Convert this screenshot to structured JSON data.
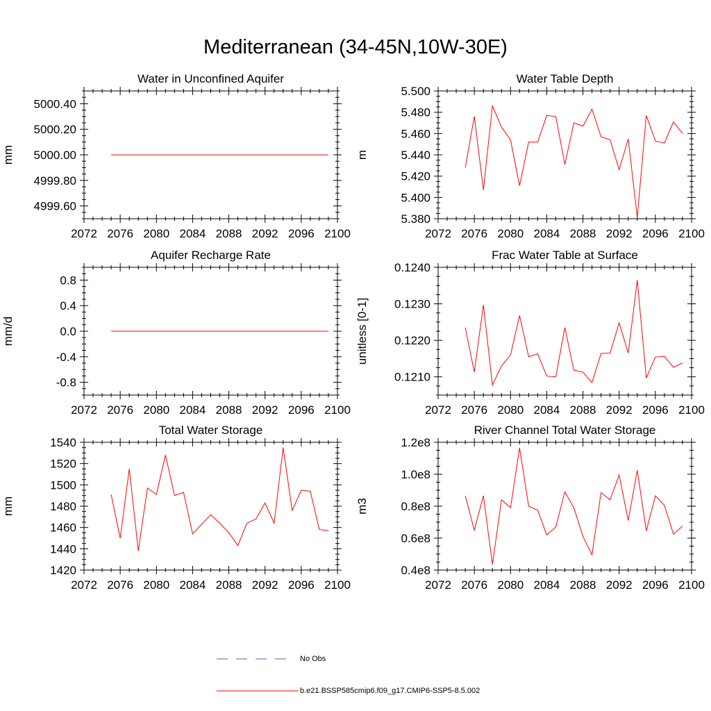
{
  "figure": {
    "title": "Mediterranean (34-45N,10W-30E)"
  },
  "legend": {
    "items": [
      {
        "label": "No Obs",
        "color": "#5a5aa8",
        "style": "dashed"
      },
      {
        "label": "b.e21.BSSP585cmip6.f09_g17.CMIP6-SSP5-8.5.002",
        "color": "#ff0000",
        "style": "solid"
      }
    ]
  },
  "chart_data": [
    {
      "type": "line",
      "title": "Water in Unconfined Aquifer",
      "ylabel": "mm",
      "xlim": [
        2072,
        2100
      ],
      "ylim": [
        4999.5,
        5000.5
      ],
      "xticks": [
        2072,
        2076,
        2080,
        2084,
        2088,
        2092,
        2096,
        2100
      ],
      "yticks": [
        4999.6,
        4999.8,
        5000.0,
        5000.2,
        5000.4
      ],
      "ytick_labels": [
        "4999.60",
        "4999.80",
        "5000.00",
        "5000.20",
        "5000.40"
      ],
      "x": [
        2075,
        2076,
        2077,
        2078,
        2079,
        2080,
        2081,
        2082,
        2083,
        2084,
        2085,
        2086,
        2087,
        2088,
        2089,
        2090,
        2091,
        2092,
        2093,
        2094,
        2095,
        2096,
        2097,
        2098,
        2099
      ],
      "series": [
        {
          "color": "#ff0000",
          "values": [
            5000,
            5000,
            5000,
            5000,
            5000,
            5000,
            5000,
            5000,
            5000,
            5000,
            5000,
            5000,
            5000,
            5000,
            5000,
            5000,
            5000,
            5000,
            5000,
            5000,
            5000,
            5000,
            5000,
            5000,
            5000
          ]
        }
      ]
    },
    {
      "type": "line",
      "title": "Water Table Depth",
      "ylabel": "m",
      "xlim": [
        2072,
        2100
      ],
      "ylim": [
        5.38,
        5.5
      ],
      "xticks": [
        2072,
        2076,
        2080,
        2084,
        2088,
        2092,
        2096,
        2100
      ],
      "yticks": [
        5.38,
        5.4,
        5.42,
        5.44,
        5.46,
        5.48,
        5.5
      ],
      "ytick_labels": [
        "5.380",
        "5.400",
        "5.420",
        "5.440",
        "5.460",
        "5.480",
        "5.500"
      ],
      "x": [
        2075,
        2076,
        2077,
        2078,
        2079,
        2080,
        2081,
        2082,
        2083,
        2084,
        2085,
        2086,
        2087,
        2088,
        2089,
        2090,
        2091,
        2092,
        2093,
        2094,
        2095,
        2096,
        2097,
        2098,
        2099
      ],
      "series": [
        {
          "color": "#ff0000",
          "values": [
            5.428,
            5.476,
            5.407,
            5.486,
            5.466,
            5.454,
            5.411,
            5.452,
            5.452,
            5.477,
            5.476,
            5.431,
            5.47,
            5.467,
            5.483,
            5.457,
            5.454,
            5.426,
            5.455,
            5.381,
            5.477,
            5.453,
            5.451,
            5.471,
            5.46
          ]
        }
      ]
    },
    {
      "type": "line",
      "title": "Aquifer Recharge Rate",
      "ylabel": "mm/d",
      "xlim": [
        2072,
        2100
      ],
      "ylim": [
        -1.0,
        1.0
      ],
      "xticks": [
        2072,
        2076,
        2080,
        2084,
        2088,
        2092,
        2096,
        2100
      ],
      "yticks": [
        -0.8,
        -0.4,
        0.0,
        0.4,
        0.8
      ],
      "ytick_labels": [
        "-0.8",
        "-0.4",
        "0.0",
        "0.4",
        "0.8"
      ],
      "x": [
        2075,
        2076,
        2077,
        2078,
        2079,
        2080,
        2081,
        2082,
        2083,
        2084,
        2085,
        2086,
        2087,
        2088,
        2089,
        2090,
        2091,
        2092,
        2093,
        2094,
        2095,
        2096,
        2097,
        2098,
        2099
      ],
      "series": [
        {
          "color": "#ff0000",
          "values": [
            0,
            0,
            0,
            0,
            0,
            0,
            0,
            0,
            0,
            0,
            0,
            0,
            0,
            0,
            0,
            0,
            0,
            0,
            0,
            0,
            0,
            0,
            0,
            0,
            0
          ]
        }
      ]
    },
    {
      "type": "line",
      "title": "Frac Water Table at Surface",
      "ylabel": "unitless [0-1]",
      "xlim": [
        2072,
        2100
      ],
      "ylim": [
        0.1205,
        0.124
      ],
      "xticks": [
        2072,
        2076,
        2080,
        2084,
        2088,
        2092,
        2096,
        2100
      ],
      "yticks": [
        0.121,
        0.122,
        0.123,
        0.124
      ],
      "ytick_labels": [
        "0.1210",
        "0.1220",
        "0.1230",
        "0.1240"
      ],
      "x": [
        2075,
        2076,
        2077,
        2078,
        2079,
        2080,
        2081,
        2082,
        2083,
        2084,
        2085,
        2086,
        2087,
        2088,
        2089,
        2090,
        2091,
        2092,
        2093,
        2094,
        2095,
        2096,
        2097,
        2098,
        2099
      ],
      "series": [
        {
          "color": "#ff0000",
          "values": [
            0.12235,
            0.12113,
            0.12297,
            0.12078,
            0.1213,
            0.1216,
            0.12268,
            0.12155,
            0.12163,
            0.12102,
            0.121,
            0.12235,
            0.12118,
            0.12113,
            0.12084,
            0.12164,
            0.12165,
            0.12248,
            0.12165,
            0.12365,
            0.12097,
            0.12154,
            0.12156,
            0.12126,
            0.12138
          ]
        }
      ]
    },
    {
      "type": "line",
      "title": "Total Water Storage",
      "ylabel": "mm",
      "xlim": [
        2072,
        2100
      ],
      "ylim": [
        1420,
        1540
      ],
      "xticks": [
        2072,
        2076,
        2080,
        2084,
        2088,
        2092,
        2096,
        2100
      ],
      "yticks": [
        1420,
        1440,
        1460,
        1480,
        1500,
        1520,
        1540
      ],
      "ytick_labels": [
        "1420",
        "1440",
        "1460",
        "1480",
        "1500",
        "1520",
        "1540"
      ],
      "x": [
        2075,
        2076,
        2077,
        2078,
        2079,
        2080,
        2081,
        2082,
        2083,
        2084,
        2085,
        2086,
        2087,
        2088,
        2089,
        2090,
        2091,
        2092,
        2093,
        2094,
        2095,
        2096,
        2097,
        2098,
        2099
      ],
      "series": [
        {
          "color": "#ff0000",
          "values": [
            1491,
            1450,
            1515,
            1438,
            1497,
            1491,
            1528,
            1490,
            1493,
            1454,
            1463,
            1472,
            1464,
            1455,
            1443,
            1464,
            1468,
            1483,
            1464,
            1535,
            1476,
            1495,
            1494,
            1458,
            1457
          ]
        }
      ]
    },
    {
      "type": "line",
      "title": "River Channel Total Water Storage",
      "ylabel": "m3",
      "xlim": [
        2072,
        2100
      ],
      "ylim": [
        0.4,
        1.2
      ],
      "xticks": [
        2072,
        2076,
        2080,
        2084,
        2088,
        2092,
        2096,
        2100
      ],
      "yticks": [
        0.4,
        0.6,
        0.8,
        1.0,
        1.2
      ],
      "ytick_labels": [
        "0.4e8",
        "0.6e8",
        "0.8e8",
        "1.0e8",
        "1.2e8"
      ],
      "x": [
        2075,
        2076,
        2077,
        2078,
        2079,
        2080,
        2081,
        2082,
        2083,
        2084,
        2085,
        2086,
        2087,
        2088,
        2089,
        2090,
        2091,
        2092,
        2093,
        2094,
        2095,
        2096,
        2097,
        2098,
        2099
      ],
      "series": [
        {
          "color": "#ff0000",
          "values": [
            0.865,
            0.65,
            0.865,
            0.435,
            0.84,
            0.79,
            1.165,
            0.8,
            0.775,
            0.62,
            0.67,
            0.89,
            0.79,
            0.61,
            0.495,
            0.885,
            0.84,
            0.995,
            0.71,
            1.025,
            0.645,
            0.865,
            0.805,
            0.625,
            0.675
          ]
        }
      ]
    }
  ]
}
